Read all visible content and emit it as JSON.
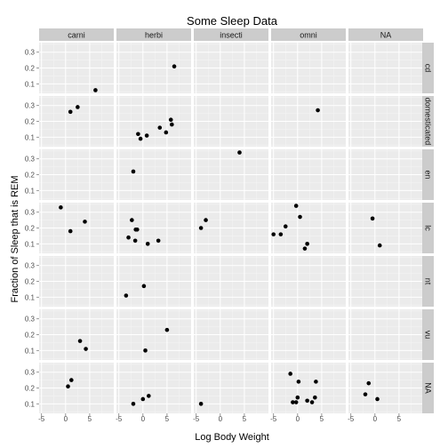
{
  "chart_data": {
    "type": "scatter",
    "title": "Some Sleep Data",
    "xlabel": "Log Body Weight",
    "ylabel": "Fraction of Sleep that is REM",
    "xlim": [
      -5.5,
      10
    ],
    "ylim": [
      0.04,
      0.36
    ],
    "x_ticks": [
      -5,
      0,
      5
    ],
    "x_tick_labels": [
      "-5",
      "0",
      "5"
    ],
    "y_ticks": [
      0.1,
      0.2,
      0.3
    ],
    "y_tick_labels": [
      "0.1",
      "0.2",
      "0.3"
    ],
    "grid": true,
    "facet_columns": [
      "carni",
      "herbi",
      "insecti",
      "omni",
      "NA"
    ],
    "facet_rows": [
      "cd",
      "domesticated",
      "en",
      "lc",
      "nt",
      "vu",
      "NA"
    ],
    "colors": {
      "panel_bg": "#ebebeb",
      "grid_major": "#ffffff",
      "strip_bg": "#cccccc",
      "point": "#000000",
      "text": "#1a1a1a"
    },
    "points": [
      {
        "col": "carni",
        "row": "cd",
        "x": 6.2,
        "y": 0.06
      },
      {
        "col": "herbi",
        "row": "cd",
        "x": 6.5,
        "y": 0.21
      },
      {
        "col": "carni",
        "row": "domesticated",
        "x": 1.0,
        "y": 0.26
      },
      {
        "col": "carni",
        "row": "domesticated",
        "x": 2.5,
        "y": 0.29
      },
      {
        "col": "herbi",
        "row": "domesticated",
        "x": -1.0,
        "y": 0.12
      },
      {
        "col": "herbi",
        "row": "domesticated",
        "x": -0.5,
        "y": 0.09
      },
      {
        "col": "herbi",
        "row": "domesticated",
        "x": 0.8,
        "y": 0.11
      },
      {
        "col": "herbi",
        "row": "domesticated",
        "x": 3.5,
        "y": 0.16
      },
      {
        "col": "herbi",
        "row": "domesticated",
        "x": 4.8,
        "y": 0.13
      },
      {
        "col": "herbi",
        "row": "domesticated",
        "x": 5.8,
        "y": 0.21
      },
      {
        "col": "herbi",
        "row": "domesticated",
        "x": 6.0,
        "y": 0.18
      },
      {
        "col": "omni",
        "row": "domesticated",
        "x": 4.2,
        "y": 0.27
      },
      {
        "col": "herbi",
        "row": "en",
        "x": -2.0,
        "y": 0.22
      },
      {
        "col": "insecti",
        "row": "en",
        "x": 4.0,
        "y": 0.34
      },
      {
        "col": "carni",
        "row": "lc",
        "x": -1.0,
        "y": 0.33
      },
      {
        "col": "carni",
        "row": "lc",
        "x": 1.0,
        "y": 0.18
      },
      {
        "col": "carni",
        "row": "lc",
        "x": 4.0,
        "y": 0.24
      },
      {
        "col": "herbi",
        "row": "lc",
        "x": -3.0,
        "y": 0.14
      },
      {
        "col": "herbi",
        "row": "lc",
        "x": -2.3,
        "y": 0.25
      },
      {
        "col": "herbi",
        "row": "lc",
        "x": -1.5,
        "y": 0.19
      },
      {
        "col": "herbi",
        "row": "lc",
        "x": -1.2,
        "y": 0.19
      },
      {
        "col": "herbi",
        "row": "lc",
        "x": -1.6,
        "y": 0.12
      },
      {
        "col": "herbi",
        "row": "lc",
        "x": 1.0,
        "y": 0.1
      },
      {
        "col": "herbi",
        "row": "lc",
        "x": 3.2,
        "y": 0.12
      },
      {
        "col": "insecti",
        "row": "lc",
        "x": -4.0,
        "y": 0.2
      },
      {
        "col": "insecti",
        "row": "lc",
        "x": -3.0,
        "y": 0.25
      },
      {
        "col": "omni",
        "row": "lc",
        "x": -5.0,
        "y": 0.16
      },
      {
        "col": "omni",
        "row": "lc",
        "x": -3.5,
        "y": 0.16
      },
      {
        "col": "omni",
        "row": "lc",
        "x": -2.5,
        "y": 0.21
      },
      {
        "col": "omni",
        "row": "lc",
        "x": -0.3,
        "y": 0.34
      },
      {
        "col": "omni",
        "row": "lc",
        "x": 0.5,
        "y": 0.27
      },
      {
        "col": "omni",
        "row": "lc",
        "x": 1.5,
        "y": 0.07
      },
      {
        "col": "omni",
        "row": "lc",
        "x": 2.0,
        "y": 0.1
      },
      {
        "col": "NA",
        "row": "lc",
        "x": -0.5,
        "y": 0.26
      },
      {
        "col": "NA",
        "row": "lc",
        "x": 1.0,
        "y": 0.09
      },
      {
        "col": "herbi",
        "row": "nt",
        "x": -3.5,
        "y": 0.11
      },
      {
        "col": "herbi",
        "row": "nt",
        "x": 0.2,
        "y": 0.17
      },
      {
        "col": "carni",
        "row": "vu",
        "x": 3.0,
        "y": 0.16
      },
      {
        "col": "carni",
        "row": "vu",
        "x": 4.2,
        "y": 0.11
      },
      {
        "col": "herbi",
        "row": "vu",
        "x": 0.5,
        "y": 0.1
      },
      {
        "col": "herbi",
        "row": "vu",
        "x": 5.0,
        "y": 0.23
      },
      {
        "col": "carni",
        "row": "NA",
        "x": 0.5,
        "y": 0.21
      },
      {
        "col": "carni",
        "row": "NA",
        "x": 1.2,
        "y": 0.25
      },
      {
        "col": "herbi",
        "row": "NA",
        "x": -2.0,
        "y": 0.1
      },
      {
        "col": "herbi",
        "row": "NA",
        "x": 0.0,
        "y": 0.13
      },
      {
        "col": "herbi",
        "row": "NA",
        "x": 1.2,
        "y": 0.15
      },
      {
        "col": "insecti",
        "row": "NA",
        "x": -4.0,
        "y": 0.1
      },
      {
        "col": "omni",
        "row": "NA",
        "x": -1.5,
        "y": 0.29
      },
      {
        "col": "omni",
        "row": "NA",
        "x": -1.0,
        "y": 0.11
      },
      {
        "col": "omni",
        "row": "NA",
        "x": -0.3,
        "y": 0.11
      },
      {
        "col": "omni",
        "row": "NA",
        "x": 0.0,
        "y": 0.14
      },
      {
        "col": "omni",
        "row": "NA",
        "x": 0.2,
        "y": 0.24
      },
      {
        "col": "omni",
        "row": "NA",
        "x": 2.0,
        "y": 0.12
      },
      {
        "col": "omni",
        "row": "NA",
        "x": 3.0,
        "y": 0.11
      },
      {
        "col": "omni",
        "row": "NA",
        "x": 3.6,
        "y": 0.14
      },
      {
        "col": "omni",
        "row": "NA",
        "x": 3.8,
        "y": 0.24
      },
      {
        "col": "NA",
        "row": "NA",
        "x": -2.0,
        "y": 0.16
      },
      {
        "col": "NA",
        "row": "NA",
        "x": -1.3,
        "y": 0.23
      },
      {
        "col": "NA",
        "row": "NA",
        "x": 0.5,
        "y": 0.13
      }
    ]
  }
}
